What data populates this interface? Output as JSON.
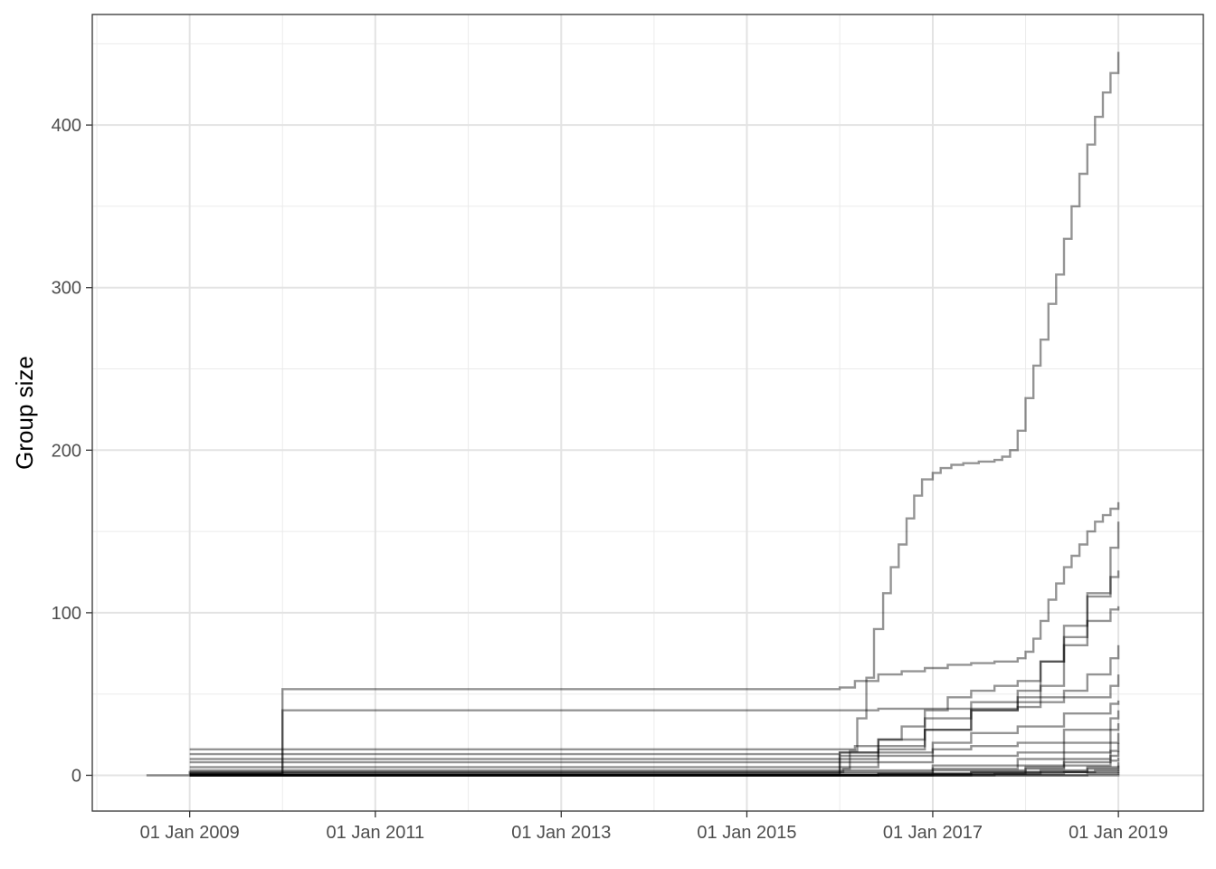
{
  "chart_data": {
    "type": "line",
    "title": "",
    "xlabel": "",
    "ylabel": "Group size",
    "x_axis": {
      "type": "date",
      "range": [
        "2007-12-15",
        "2019-12-01"
      ],
      "ticks": [
        "2009-01-01",
        "2011-01-01",
        "2013-01-01",
        "2015-01-01",
        "2017-01-01",
        "2019-01-01"
      ],
      "tick_labels": [
        "01 Jan 2009",
        "01 Jan 2011",
        "01 Jan 2013",
        "01 Jan 2015",
        "01 Jan 2017",
        "01 Jan 2019"
      ]
    },
    "y_axis": {
      "range": [
        -22,
        468
      ],
      "ticks": [
        0,
        100,
        200,
        300,
        400
      ],
      "tick_labels": [
        "0",
        "100",
        "200",
        "300",
        "400"
      ]
    },
    "grid": true,
    "legend": "none",
    "line_color": "#000000",
    "line_opacity": 0.42,
    "series": [
      {
        "x": [
          "2008-07-15",
          "2009-01-01",
          "2009-01-01",
          "2016-01-01",
          "2016-01-15",
          "2016-02-10",
          "2016-03-10",
          "2016-04-15",
          "2016-05-15",
          "2016-06-20",
          "2016-07-20",
          "2016-08-20",
          "2016-09-20",
          "2016-10-20",
          "2016-11-20",
          "2017-01-01",
          "2017-02-01",
          "2017-03-15",
          "2017-05-01",
          "2017-07-01",
          "2017-09-01",
          "2017-10-01",
          "2017-11-01",
          "2017-12-01",
          "2018-01-01",
          "2018-02-01",
          "2018-03-01",
          "2018-04-01",
          "2018-05-01",
          "2018-06-01",
          "2018-07-01",
          "2018-08-01",
          "2018-09-01",
          "2018-10-01",
          "2018-11-01",
          "2018-12-01",
          "2019-01-01"
        ],
        "y": [
          0,
          1,
          2,
          2,
          4,
          15,
          35,
          60,
          90,
          112,
          128,
          142,
          158,
          172,
          182,
          186,
          189,
          191,
          192,
          193,
          194,
          196,
          200,
          212,
          232,
          252,
          268,
          290,
          308,
          330,
          350,
          370,
          388,
          405,
          420,
          432,
          445
        ]
      },
      {
        "x": [
          "2009-01-01",
          "2010-01-01",
          "2010-01-01",
          "2016-01-01",
          "2016-03-01",
          "2016-06-01",
          "2016-09-01",
          "2016-12-01",
          "2017-03-01",
          "2017-06-01",
          "2017-09-01",
          "2017-12-01",
          "2018-01-01",
          "2018-02-01",
          "2018-03-01",
          "2018-04-01",
          "2018-05-01",
          "2018-06-01",
          "2018-07-01",
          "2018-08-01",
          "2018-09-01",
          "2018-10-01",
          "2018-11-01",
          "2018-12-01",
          "2019-01-01"
        ],
        "y": [
          1,
          2,
          53,
          54,
          58,
          62,
          64,
          66,
          68,
          69,
          70,
          72,
          76,
          84,
          95,
          108,
          118,
          128,
          135,
          142,
          150,
          156,
          160,
          164,
          168
        ]
      },
      {
        "x": [
          "2009-01-01",
          "2010-01-01",
          "2010-01-01",
          "2016-01-01",
          "2016-06-01",
          "2017-01-01",
          "2017-06-01",
          "2017-12-01",
          "2018-03-01",
          "2018-06-01",
          "2018-09-01",
          "2018-12-01",
          "2019-01-01"
        ],
        "y": [
          1,
          2,
          40,
          40,
          41,
          41,
          41,
          42,
          55,
          80,
          110,
          140,
          156
        ]
      },
      {
        "x": [
          "2009-01-01",
          "2016-01-01",
          "2016-03-01",
          "2016-06-01",
          "2016-09-01",
          "2016-12-01",
          "2017-03-01",
          "2017-06-01",
          "2017-09-01",
          "2017-12-01",
          "2018-03-01",
          "2018-06-01",
          "2018-09-01",
          "2018-12-01",
          "2019-01-01"
        ],
        "y": [
          16,
          16,
          18,
          22,
          30,
          40,
          48,
          52,
          55,
          58,
          70,
          92,
          112,
          122,
          126
        ]
      },
      {
        "x": [
          "2009-01-01",
          "2016-01-01",
          "2016-06-01",
          "2016-12-01",
          "2017-06-01",
          "2017-12-01",
          "2018-03-01",
          "2018-06-01",
          "2018-09-01",
          "2018-12-01",
          "2019-01-01"
        ],
        "y": [
          13,
          14,
          16,
          28,
          40,
          52,
          70,
          85,
          95,
          102,
          104
        ]
      },
      {
        "x": [
          "2009-01-01",
          "2016-01-01",
          "2016-06-01",
          "2016-12-01",
          "2017-06-01",
          "2017-12-01",
          "2018-06-01",
          "2018-09-01",
          "2018-12-01",
          "2019-01-01"
        ],
        "y": [
          10,
          14,
          22,
          35,
          45,
          48,
          52,
          62,
          72,
          80
        ]
      },
      {
        "x": [
          "2009-01-01",
          "2016-01-01",
          "2016-06-01",
          "2016-12-01",
          "2017-06-01",
          "2017-12-01",
          "2018-06-01",
          "2018-12-01",
          "2019-01-01"
        ],
        "y": [
          8,
          12,
          18,
          28,
          40,
          45,
          48,
          55,
          62
        ]
      },
      {
        "x": [
          "2009-01-01",
          "2016-01-01",
          "2016-06-01",
          "2017-01-01",
          "2017-06-01",
          "2017-12-01",
          "2018-06-01",
          "2018-12-01",
          "2019-01-01"
        ],
        "y": [
          5,
          10,
          14,
          20,
          26,
          30,
          38,
          44,
          46
        ]
      },
      {
        "x": [
          "2009-01-01",
          "2016-01-01",
          "2016-06-01",
          "2017-01-01",
          "2017-06-01",
          "2017-12-01",
          "2018-06-01",
          "2018-12-01",
          "2019-01-01"
        ],
        "y": [
          3,
          8,
          12,
          16,
          18,
          20,
          28,
          35,
          40
        ]
      },
      {
        "x": [
          "2009-01-01",
          "2016-01-01",
          "2016-06-01",
          "2017-01-01",
          "2017-12-01",
          "2018-06-01",
          "2018-12-01",
          "2019-01-01"
        ],
        "y": [
          2,
          5,
          8,
          12,
          14,
          20,
          28,
          32
        ]
      },
      {
        "x": [
          "2009-01-01",
          "2016-01-01",
          "2017-01-01",
          "2017-12-01",
          "2018-06-01",
          "2018-12-01",
          "2019-01-01"
        ],
        "y": [
          1,
          3,
          6,
          10,
          14,
          20,
          26
        ]
      },
      {
        "x": [
          "2009-01-01",
          "2016-01-01",
          "2017-01-01",
          "2017-12-01",
          "2018-06-01",
          "2018-12-01",
          "2019-01-01"
        ],
        "y": [
          1,
          2,
          4,
          6,
          10,
          15,
          20
        ]
      },
      {
        "x": [
          "2009-01-01",
          "2016-01-01",
          "2017-01-01",
          "2018-01-01",
          "2018-06-01",
          "2018-12-01",
          "2019-01-01"
        ],
        "y": [
          0,
          1,
          3,
          5,
          8,
          12,
          15
        ]
      },
      {
        "x": [
          "2009-01-01",
          "2016-06-01",
          "2017-06-01",
          "2018-01-01",
          "2018-06-01",
          "2018-12-01",
          "2019-01-01"
        ],
        "y": [
          0,
          1,
          2,
          4,
          6,
          9,
          11
        ]
      },
      {
        "x": [
          "2009-01-01",
          "2016-06-01",
          "2017-06-01",
          "2018-03-01",
          "2018-09-01",
          "2019-01-01"
        ],
        "y": [
          0,
          1,
          2,
          3,
          5,
          8
        ]
      },
      {
        "x": [
          "2009-01-01",
          "2017-01-01",
          "2018-01-01",
          "2018-09-01",
          "2019-01-01"
        ],
        "y": [
          0,
          1,
          2,
          4,
          6
        ]
      },
      {
        "x": [
          "2009-01-01",
          "2017-06-01",
          "2018-03-01",
          "2018-10-01",
          "2019-01-01"
        ],
        "y": [
          0,
          1,
          2,
          3,
          4
        ]
      },
      {
        "x": [
          "2009-01-01",
          "2017-09-01",
          "2018-06-01",
          "2019-01-01"
        ],
        "y": [
          0,
          1,
          2,
          3
        ]
      },
      {
        "x": [
          "2009-01-01",
          "2018-01-01",
          "2018-09-01",
          "2019-01-01"
        ],
        "y": [
          0,
          0,
          1,
          2
        ]
      },
      {
        "x": [
          "2009-01-01",
          "2018-06-01",
          "2019-01-01"
        ],
        "y": [
          0,
          0,
          1
        ]
      }
    ]
  }
}
